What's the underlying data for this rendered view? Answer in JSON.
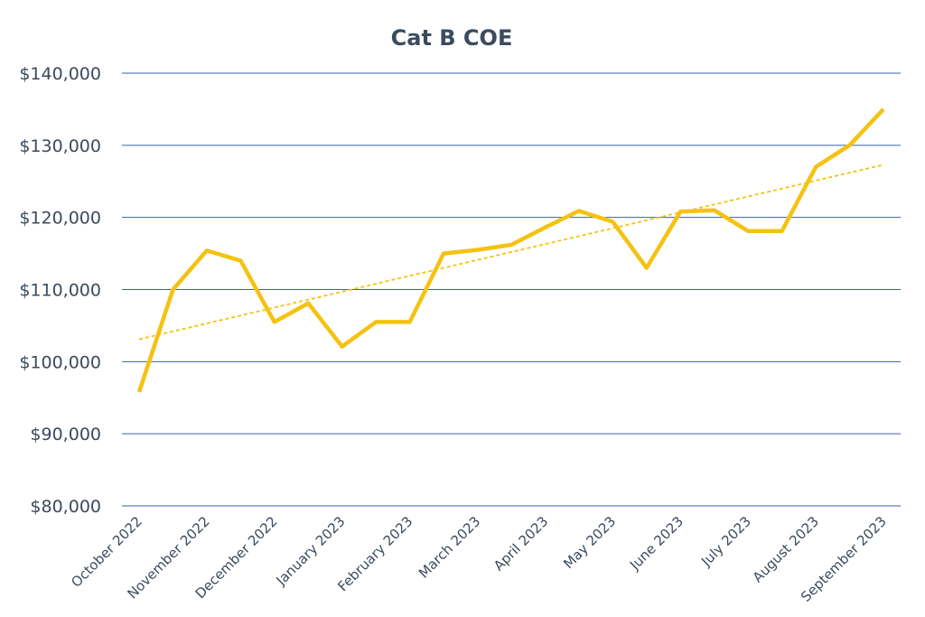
{
  "chart_data": {
    "type": "line",
    "title": "Cat B COE",
    "xlabel": "",
    "ylabel": "",
    "ylim": [
      80000,
      140000
    ],
    "y_ticks": [
      "$80,000",
      "$90,000",
      "$100,000",
      "$110,000",
      "$120,000",
      "$130,000",
      "$140,000"
    ],
    "y_tick_values": [
      80000,
      90000,
      100000,
      110000,
      120000,
      130000,
      140000
    ],
    "x_tick_labels": [
      "October 2022",
      "November 2022",
      "December 2022",
      "January 2023",
      "February 2023",
      "March 2023",
      "April 2023",
      "May 2023",
      "June 2023",
      "July 2023",
      "August 2023",
      "September 2023"
    ],
    "x_tick_positions": [
      0,
      2,
      4,
      6,
      8,
      10,
      12,
      14,
      16,
      18,
      20,
      22
    ],
    "grid": true,
    "series": [
      {
        "name": "",
        "color": "#f5c211",
        "values": [
          95800,
          110000,
          115400,
          114000,
          105500,
          108100,
          102100,
          105500,
          105500,
          115000,
          115500,
          116200,
          118600,
          120900,
          119400,
          113000,
          120800,
          121000,
          118100,
          118100,
          127000,
          130000,
          135000
        ]
      }
    ],
    "trendline": {
      "type": "linear",
      "color": "#f5c211",
      "dashed": true,
      "start": 103100,
      "end": 127300
    }
  }
}
